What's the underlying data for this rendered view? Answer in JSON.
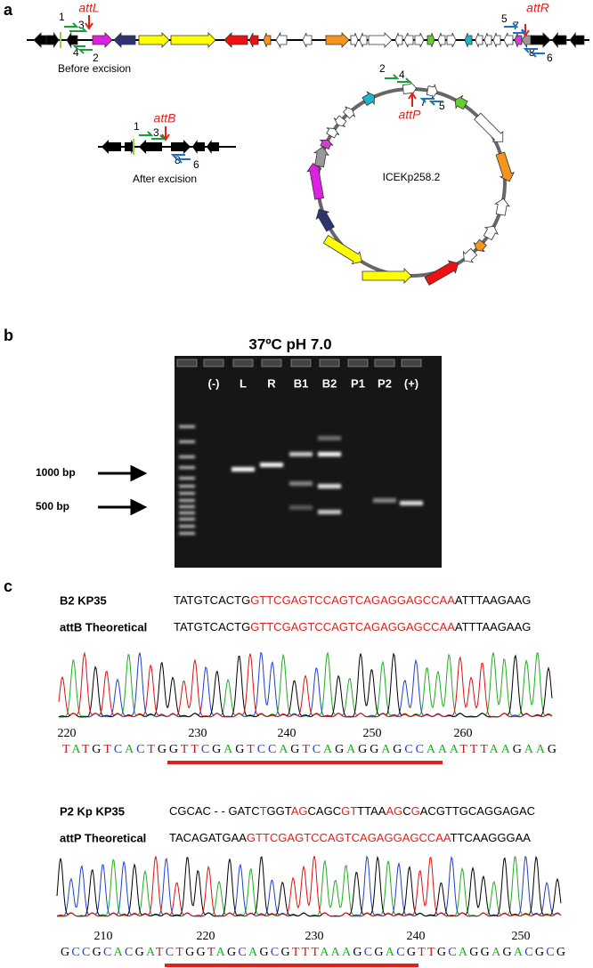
{
  "panel_a": {
    "label": "a",
    "linear_map": {
      "attL": "attL",
      "attR": "attR",
      "primers_left": [
        "1",
        "3",
        "4",
        "2"
      ],
      "primers_right": [
        "5",
        "7",
        "8",
        "6"
      ],
      "caption": "Before excision"
    },
    "circular_map": {
      "name": "ICEKp258.2",
      "attP": "attP",
      "primers": [
        "2",
        "4",
        "7",
        "5"
      ]
    },
    "excised_map": {
      "attB": "attB",
      "primers": [
        "1",
        "3",
        "8",
        "6"
      ],
      "caption": "After excision"
    }
  },
  "panel_b": {
    "label": "b",
    "title": "37ºC pH 7.0",
    "lanes": [
      "(-)",
      "L",
      "R",
      "B1",
      "B2",
      "P1",
      "P2",
      "(+)"
    ],
    "markers": [
      "1000 bp",
      "500 bp"
    ]
  },
  "panel_c": {
    "label": "c",
    "alignment_1": {
      "rows": [
        {
          "name": "B2 KP35",
          "segments": [
            "TATGTCACTG",
            "GTTCGAGTCCAGTCAGAGGAGCCAA",
            "ATTTAAGAAG"
          ],
          "highlight": [
            false,
            true,
            false
          ]
        },
        {
          "name": "attB Theoretical",
          "segments": [
            "TATGTCACTG",
            "GTTCGAGTCCAGTCAGAGGAGCCAA",
            "ATTTAAGAAG"
          ],
          "highlight": [
            false,
            true,
            false
          ]
        }
      ],
      "positions": [
        "220",
        "230",
        "240",
        "250",
        "260"
      ],
      "trace_bases": "TATGTCACTGGTTCGAGTCCAGTCAGAGGAGCCAAATTTAAGAAG"
    },
    "alignment_2": {
      "rows": [
        {
          "name": "P2 Kp KP35",
          "segments": [
            "CGCAC - - GATC",
            "T",
            "GGT",
            "AG",
            "CAGC",
            "GT",
            "TTAA",
            "AG",
            "C",
            "G",
            "AC",
            "GTTGCAGGAGAC"
          ],
          "highlight": [
            false,
            true,
            false,
            true,
            false,
            true,
            false,
            true,
            false,
            true,
            false,
            false
          ]
        },
        {
          "name": "attP Theoretical",
          "segments": [
            "TACAGATGAA",
            "GTTCGAGTCCAGTCAGAGGAGCCAA",
            "TTCAAGGGAA"
          ],
          "highlight": [
            false,
            true,
            false
          ]
        }
      ],
      "positions": [
        "210",
        "220",
        "230",
        "240",
        "250"
      ],
      "trace_bases": "GCCGCACGATCTGGTAGCAGCGTTTAAAGCGACGTTGCAGGAGACGCG"
    }
  }
}
